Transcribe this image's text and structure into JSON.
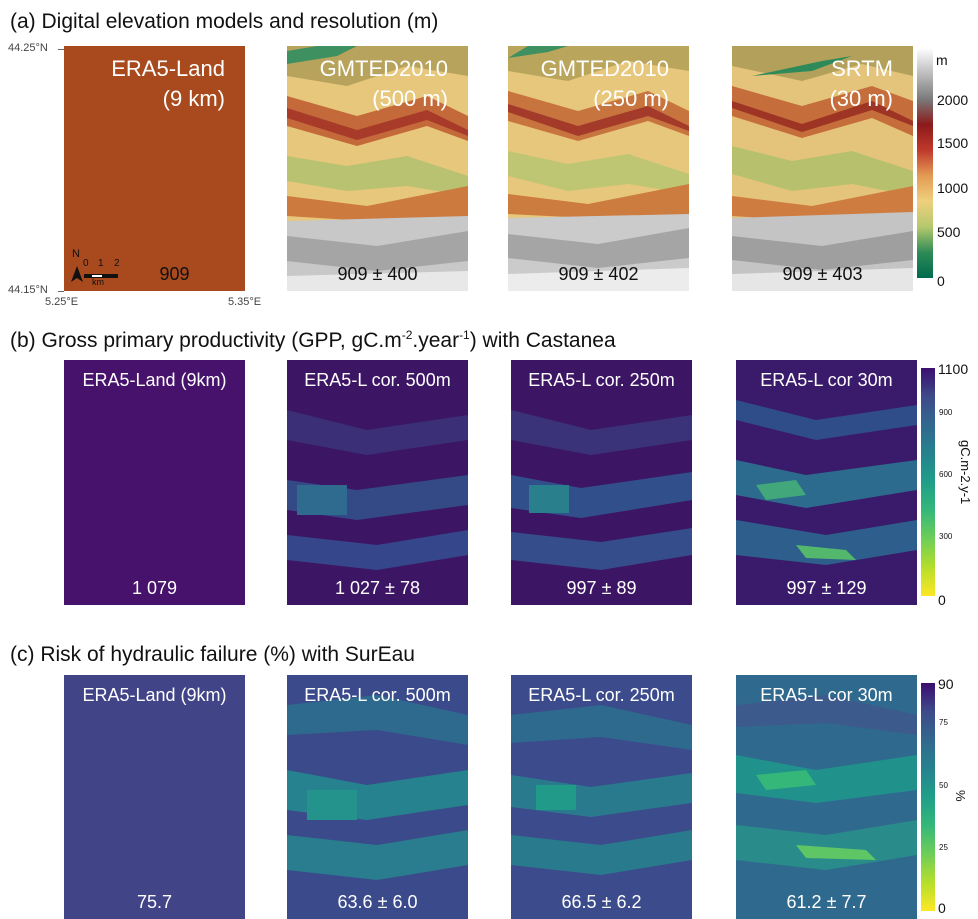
{
  "sections": {
    "a": {
      "title": "(a) Digital elevation models and resolution (m)"
    },
    "b": {
      "title_pre": "(b) Gross primary productivity (GPP, gC.m",
      "sup1": "-2",
      "title_mid": ".year",
      "sup2": "-1",
      "title_post": ") with Castanea"
    },
    "c": {
      "title": "(c) Risk of hydraulic failure (%) with SurEau"
    }
  },
  "row_a": {
    "panels": [
      {
        "line1": "ERA5-Land",
        "line2": "(9 km)",
        "value": "909"
      },
      {
        "line1": "GMTED2010",
        "line2": "(500 m)",
        "value": "909 ± 400"
      },
      {
        "line1": "GMTED2010",
        "line2": "(250 m)",
        "value": "909 ± 402"
      },
      {
        "line1": "SRTM",
        "line2": "(30 m)",
        "value": "909 ± 403"
      }
    ],
    "lat_top": "44.25°N",
    "lat_bottom": "44.15°N",
    "lon_left": "5.25°E",
    "lon_right": "5.35°E",
    "north": "N",
    "scale_0": "0",
    "scale_1": "1",
    "scale_2": "2",
    "scale_unit": "km",
    "colorbar": {
      "unit": "m",
      "ticks": [
        "2000",
        "1500",
        "1000",
        "500",
        "0"
      ],
      "colors": [
        "#ffffff",
        "#bdbdbd",
        "#7a7a7a",
        "#8b1a1a",
        "#c0392b",
        "#e39b54",
        "#eed07d",
        "#b6c86c",
        "#2e8b57",
        "#006a4e"
      ]
    }
  },
  "row_b": {
    "panels": [
      {
        "title": "ERA5-Land (9km)",
        "value": "1 079"
      },
      {
        "title": "ERA5-L cor. 500m",
        "value": "1 027 ± 78"
      },
      {
        "title": "ERA5-L cor. 250m",
        "value": "997 ± 89"
      },
      {
        "title": "ERA5-L cor 30m",
        "value": "997 ± 129"
      }
    ],
    "colorbar": {
      "ticks_big": [
        "1100",
        "0"
      ],
      "ticks_small": [
        "900",
        "600",
        "300"
      ],
      "label": "gC.m-2.y-1",
      "colors": [
        "#3b0f70",
        "#3e4a89",
        "#31688e",
        "#26828e",
        "#1f9e89",
        "#35b779",
        "#6ece58",
        "#b5de2b",
        "#fde725"
      ]
    }
  },
  "row_c": {
    "panels": [
      {
        "title": "ERA5-Land (9km)",
        "value": "75.7"
      },
      {
        "title": "ERA5-L cor. 500m",
        "value": "63.6 ± 6.0"
      },
      {
        "title": "ERA5-L cor. 250m",
        "value": "66.5 ± 6.2"
      },
      {
        "title": "ERA5-L cor 30m",
        "value": "61.2 ± 7.7"
      }
    ],
    "colorbar": {
      "ticks_big": [
        "90",
        "0"
      ],
      "ticks_small": [
        "75",
        "50",
        "25"
      ],
      "label": "%",
      "colors": [
        "#3b0f70",
        "#3e4a89",
        "#31688e",
        "#26828e",
        "#1f9e89",
        "#35b779",
        "#6ece58",
        "#b5de2b",
        "#fde725"
      ]
    }
  }
}
